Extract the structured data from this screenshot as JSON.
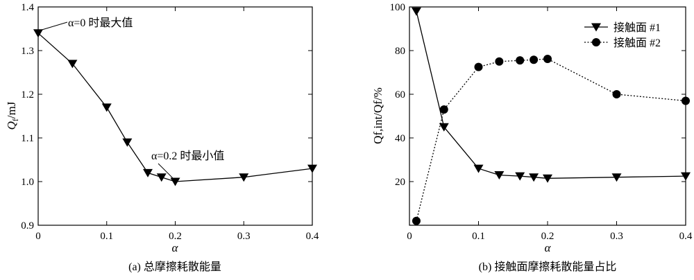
{
  "chart_data": [
    {
      "type": "line",
      "caption": "(a)  总摩擦耗散能量",
      "xlabel": "α",
      "ylabel": "Qf/mJ",
      "ylabel_main": "Q",
      "ylabel_sub": "f",
      "ylabel_unit": "/mJ",
      "xlim": [
        0,
        0.4
      ],
      "ylim": [
        0.9,
        1.4
      ],
      "xticks": [
        "0",
        "0.1",
        "0.2",
        "0.3",
        "0.4"
      ],
      "yticks": [
        "0.9",
        "1.0",
        "1.1",
        "1.2",
        "1.3",
        "1.4"
      ],
      "series": [
        {
          "marker": "triangle-down",
          "line": "solid",
          "x": [
            0,
            0.05,
            0.1,
            0.13,
            0.16,
            0.18,
            0.2,
            0.3,
            0.4
          ],
          "y": [
            1.34,
            1.27,
            1.17,
            1.09,
            1.02,
            1.01,
            1.0,
            1.01,
            1.03
          ]
        }
      ],
      "annotations": [
        {
          "text": "α=0 时最大值",
          "x": 0,
          "y": 1.34
        },
        {
          "text": "α=0.2 时最小值",
          "x": 0.2,
          "y": 1.0
        }
      ]
    },
    {
      "type": "line",
      "caption": "(b)  接触面摩擦耗散能量占比",
      "xlabel": "α",
      "ylabel": "Qf,int/Qf/%",
      "xlim": [
        0,
        0.4
      ],
      "ylim": [
        0,
        100
      ],
      "xticks": [
        "0",
        "0.1",
        "0.2",
        "0.3",
        "0.4"
      ],
      "yticks": [
        "20",
        "40",
        "60",
        "80",
        "100"
      ],
      "legend_position": "top-right",
      "series": [
        {
          "name": "接触面 #1",
          "marker": "triangle-down",
          "line": "solid",
          "x": [
            0.01,
            0.05,
            0.1,
            0.13,
            0.16,
            0.18,
            0.2,
            0.3,
            0.4
          ],
          "y": [
            98,
            45,
            26,
            23,
            22.5,
            22,
            21.5,
            22,
            22.5
          ]
        },
        {
          "name": "接触面 #2",
          "marker": "circle",
          "line": "dotted",
          "x": [
            0.01,
            0.05,
            0.1,
            0.13,
            0.16,
            0.18,
            0.2,
            0.3,
            0.4
          ],
          "y": [
            2,
            53,
            72.5,
            75,
            75.5,
            75.8,
            76.2,
            60,
            57
          ]
        }
      ]
    }
  ]
}
